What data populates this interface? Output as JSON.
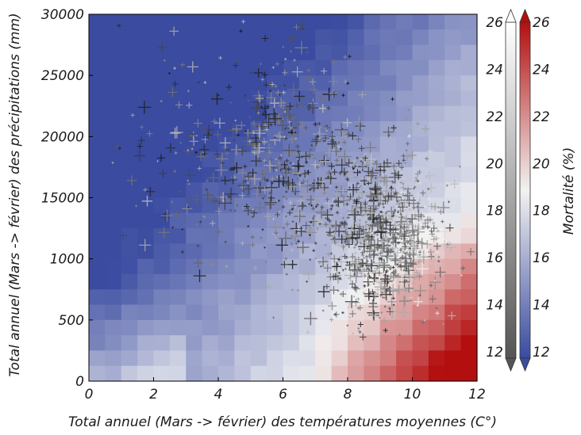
{
  "chart_data": {
    "type": "heatmap",
    "subtype": "heatmap-with-scatter-overlay",
    "xlabel": "Total annuel (Mars -> février) des températures moyennes (C°)",
    "ylabel": "Total annuel (Mars -> février) des précipitations (mm)",
    "x_ticks": [
      "0",
      "2",
      "4",
      "6",
      "8",
      "10",
      "12"
    ],
    "y_ticks": [
      "0",
      "500",
      "1000",
      "15000",
      "20000",
      "25000",
      "30000"
    ],
    "xlim": [
      0,
      12
    ],
    "ylim": [
      0,
      30000
    ],
    "grid": false,
    "legend": "none",
    "heatmap": {
      "description_value": "Mortalité (%)",
      "value_range": [
        12,
        26
      ],
      "color_low": "#3a4ba0",
      "color_mid": "#f2f2f2",
      "color_high": "#b40f0f",
      "grid_cols": 24,
      "grid_rows": 24,
      "trend": "mortality increases toward high temperature and low precipitation (bottom-right); lowest toward low temperature / high precipitation (top-left)"
    },
    "scatter": {
      "marker": "plus",
      "grey_scale_value_range": [
        12,
        26
      ],
      "color_low": "#111111",
      "color_high": "#ffffff",
      "approx_point_count": 1500,
      "main_cluster_center": [
        9,
        12000
      ],
      "secondary_cloud_center": [
        5,
        20000
      ]
    },
    "colorbars": [
      {
        "name": "points-scale",
        "ticks": [
          "12",
          "14",
          "16",
          "18",
          "20",
          "22",
          "24",
          "26"
        ],
        "range": [
          12,
          26
        ],
        "colors": [
          "#555555",
          "#ffffff"
        ]
      },
      {
        "name": "heatmap-scale",
        "label": "Mortalité (%)",
        "ticks": [
          "12",
          "14",
          "16",
          "18",
          "20",
          "22",
          "24",
          "26"
        ],
        "range": [
          12,
          26
        ],
        "colors": [
          "#3a4ba0",
          "#f2f2f2",
          "#b40f0f"
        ]
      }
    ]
  }
}
